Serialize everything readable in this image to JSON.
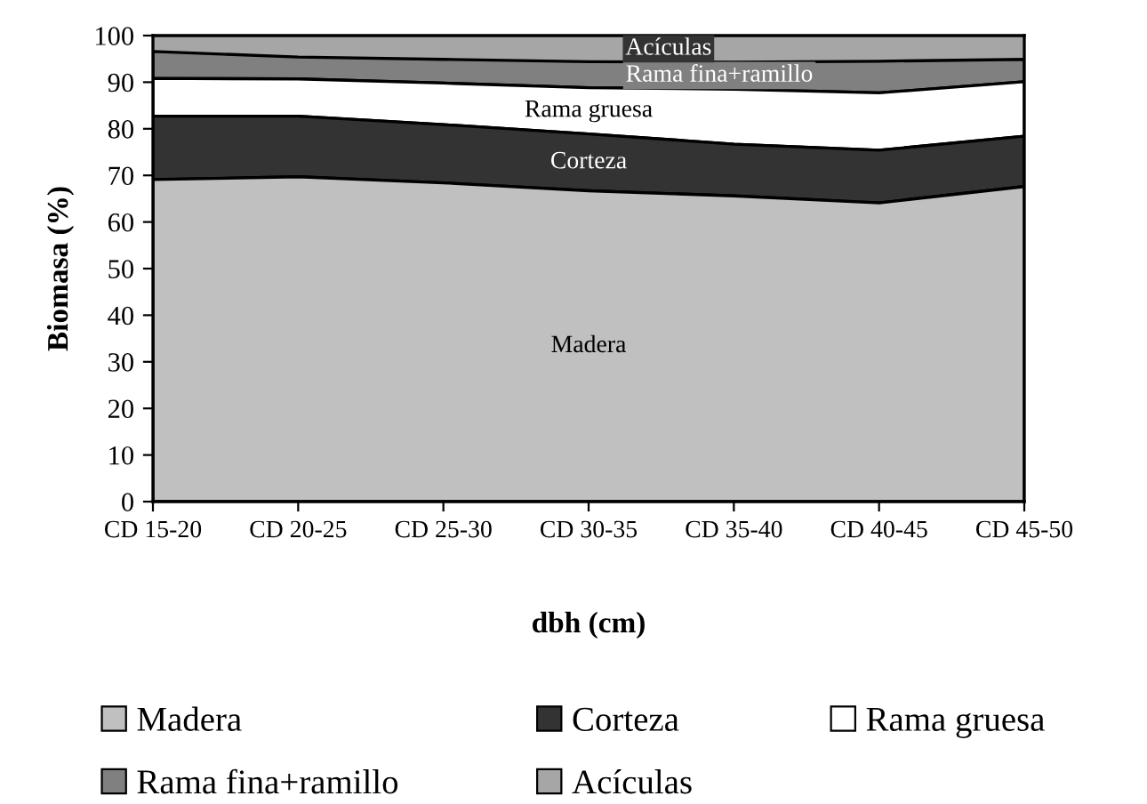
{
  "chart_data": {
    "type": "area",
    "stacked": true,
    "xlabel": "dbh (cm)",
    "ylabel": "Biomasa (%)",
    "categories": [
      "CD 15-20",
      "CD 20-25",
      "CD 25-30",
      "CD 30-35",
      "CD 35-40",
      "CD 40-45",
      "CD 45-50"
    ],
    "series": [
      {
        "name": "Madera",
        "color": "#c0c0c0",
        "values": [
          69.1,
          69.7,
          68.4,
          66.7,
          65.6,
          64.1,
          67.6
        ]
      },
      {
        "name": "Corteza",
        "color": "#333333",
        "values": [
          13.6,
          13.0,
          12.5,
          12.2,
          11.1,
          11.3,
          10.8
        ]
      },
      {
        "name": "Rama gruesa",
        "color": "#ffffff",
        "values": [
          8.1,
          8.0,
          8.9,
          9.9,
          11.8,
          12.3,
          11.7
        ]
      },
      {
        "name": "Rama fina+ramillo",
        "color": "#808080",
        "values": [
          5.8,
          4.7,
          5.1,
          5.6,
          5.8,
          6.8,
          4.8
        ]
      },
      {
        "name": "Acículas",
        "color": "#a6a6a6",
        "values": [
          3.4,
          4.6,
          5.1,
          5.6,
          5.7,
          5.5,
          5.1
        ]
      }
    ],
    "ylim": [
      0,
      100
    ],
    "yticks": [
      0,
      10,
      20,
      30,
      40,
      50,
      60,
      70,
      80,
      90,
      100
    ],
    "legend": "bottom"
  }
}
